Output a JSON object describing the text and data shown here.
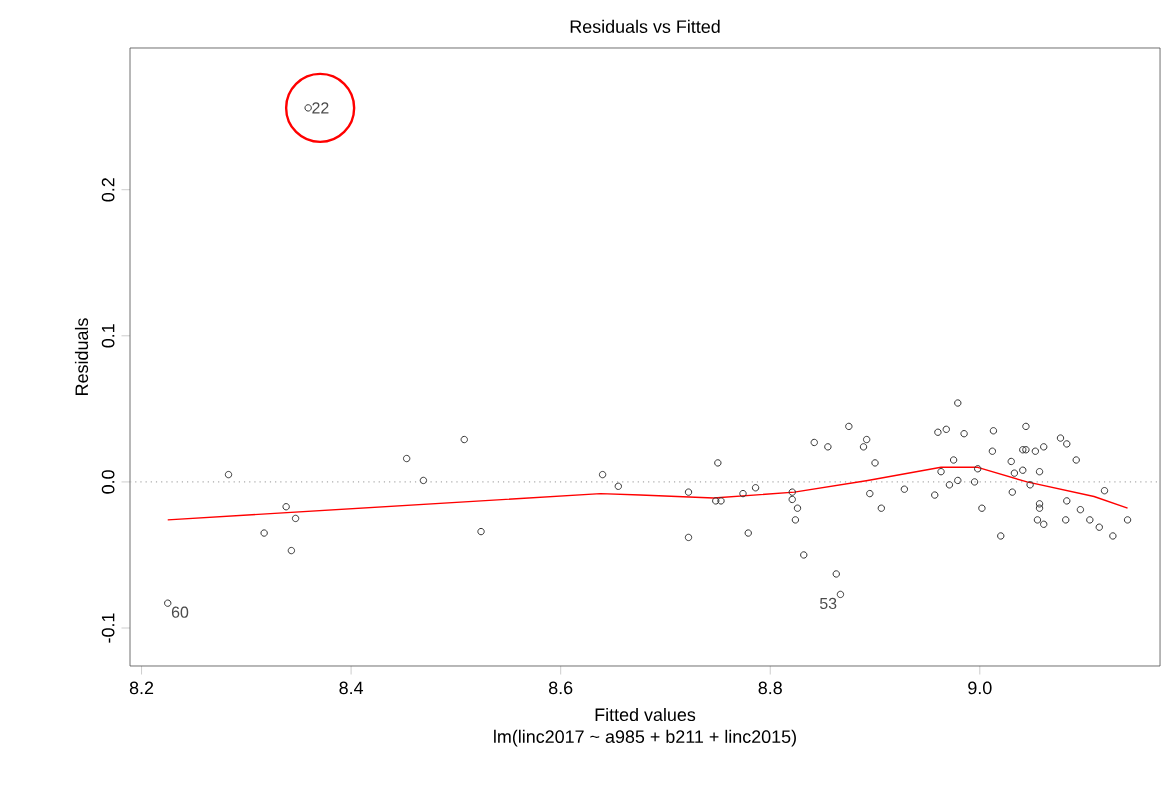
{
  "chart_data": {
    "type": "scatter",
    "title": "Residuals vs Fitted",
    "subtitle": "lm(linc2017 ~ a985 + b211 + linc2015)",
    "xlabel": "Fitted values",
    "ylabel": "Residuals",
    "xlim": [
      8.189,
      9.172
    ],
    "ylim": [
      -0.126,
      0.297
    ],
    "xticks": [
      {
        "value": 8.2,
        "label": "8.2"
      },
      {
        "value": 8.4,
        "label": "8.4"
      },
      {
        "value": 8.6,
        "label": "8.6"
      },
      {
        "value": 8.8,
        "label": "8.8"
      },
      {
        "value": 9.0,
        "label": "9.0"
      }
    ],
    "yticks": [
      {
        "value": -0.1,
        "label": "-0.1"
      },
      {
        "value": 0,
        "label": "0.0"
      },
      {
        "value": 0.1,
        "label": "0.1"
      },
      {
        "value": 0.2,
        "label": "0.2"
      }
    ],
    "grid": false,
    "marker": "circle",
    "series": [
      {
        "color": "#333333",
        "x": [
          8.225,
          8.283,
          8.338,
          8.347,
          8.317,
          8.343,
          8.359,
          8.453,
          8.469,
          8.508,
          8.524,
          8.64,
          8.655,
          8.722,
          8.722,
          8.75,
          8.748,
          8.753,
          8.774,
          8.779,
          8.786,
          8.821,
          8.821,
          8.826,
          8.824,
          8.832,
          8.842,
          8.855,
          8.863,
          8.867,
          8.875,
          8.889,
          8.892,
          8.9,
          8.895,
          8.906,
          8.928,
          8.957,
          8.96,
          8.968,
          8.979,
          8.985,
          8.975,
          8.963,
          8.971,
          8.979,
          8.995,
          9.002,
          8.998,
          9.013,
          9.012,
          9.02,
          9.03,
          9.033,
          9.031,
          9.044,
          9.041,
          9.044,
          9.053,
          9.061,
          9.041,
          9.048,
          9.057,
          9.057,
          9.057,
          9.055,
          9.061,
          9.077,
          9.083,
          9.092,
          9.083,
          9.082,
          9.096,
          9.105,
          9.114,
          9.119,
          9.127,
          9.141
        ],
        "values": [
          -0.083,
          0.005,
          -0.017,
          -0.025,
          -0.035,
          -0.047,
          0.256,
          0.016,
          0.001,
          0.029,
          -0.034,
          0.005,
          -0.003,
          -0.007,
          -0.038,
          0.013,
          -0.013,
          -0.013,
          -0.008,
          -0.035,
          -0.004,
          -0.007,
          -0.012,
          -0.018,
          -0.026,
          -0.05,
          0.027,
          0.024,
          -0.063,
          -0.077,
          0.038,
          0.024,
          0.029,
          0.013,
          -0.008,
          -0.018,
          -0.005,
          -0.009,
          0.034,
          0.036,
          0.054,
          0.033,
          0.015,
          0.007,
          -0.002,
          0.001,
          0.0,
          -0.018,
          0.009,
          0.035,
          0.021,
          -0.037,
          0.014,
          0.006,
          -0.007,
          0.038,
          0.022,
          0.022,
          0.021,
          0.024,
          0.008,
          -0.002,
          0.007,
          -0.015,
          -0.018,
          -0.026,
          -0.029,
          0.03,
          0.026,
          0.015,
          -0.013,
          -0.026,
          -0.019,
          -0.026,
          -0.031,
          -0.006,
          -0.037,
          -0.026
        ]
      },
      {
        "type": "line",
        "color": "#ff0000",
        "marker": "none",
        "line_style": "solid",
        "x": [
          8.225,
          8.638,
          8.676,
          8.746,
          8.823,
          8.893,
          8.963,
          8.998,
          9.045,
          9.109,
          9.141
        ],
        "values": [
          -0.026,
          -0.008,
          -0.009,
          -0.011,
          -0.007,
          0.001,
          0.01,
          0.01,
          0.0,
          -0.01,
          -0.018
        ]
      }
    ],
    "ref_lines": [
      {
        "axis": "y",
        "value": 0,
        "color": "#aaaaaa",
        "line_style": "dotted"
      }
    ],
    "annotations": [
      {
        "text": "22",
        "x": 8.359,
        "y": 0.256
      },
      {
        "text": "60",
        "x": 8.225,
        "y": -0.083
      },
      {
        "text": "53",
        "x": 8.867,
        "y": -0.077
      }
    ]
  }
}
